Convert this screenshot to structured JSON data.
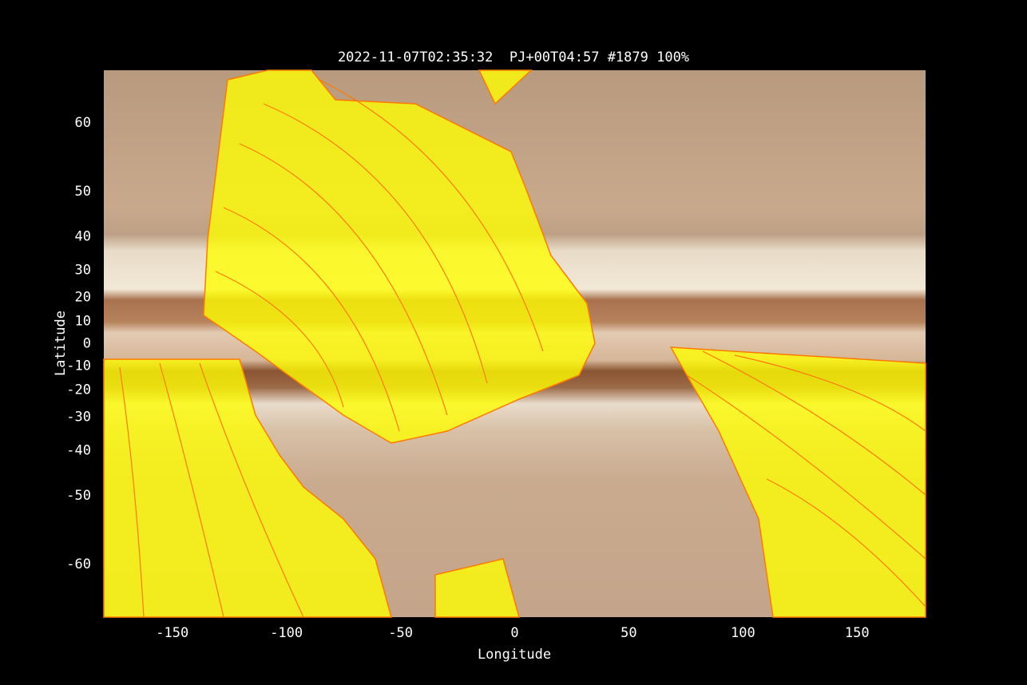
{
  "chart_data": {
    "type": "map",
    "title": "2022-11-07T02:35:32  PJ+00T04:57 #1879 100%",
    "x_label": "Longitude",
    "y_label": "Latitude",
    "xlim": [
      -180,
      180
    ],
    "xticks": [
      -150,
      -100,
      -50,
      0,
      50,
      100,
      150
    ],
    "ylim": [
      -65,
      65
    ],
    "yticks": [
      60,
      50,
      40,
      30,
      20,
      10,
      0,
      -10,
      -20,
      -30,
      -40,
      -50,
      -60
    ],
    "yscale": "tan"
  }
}
